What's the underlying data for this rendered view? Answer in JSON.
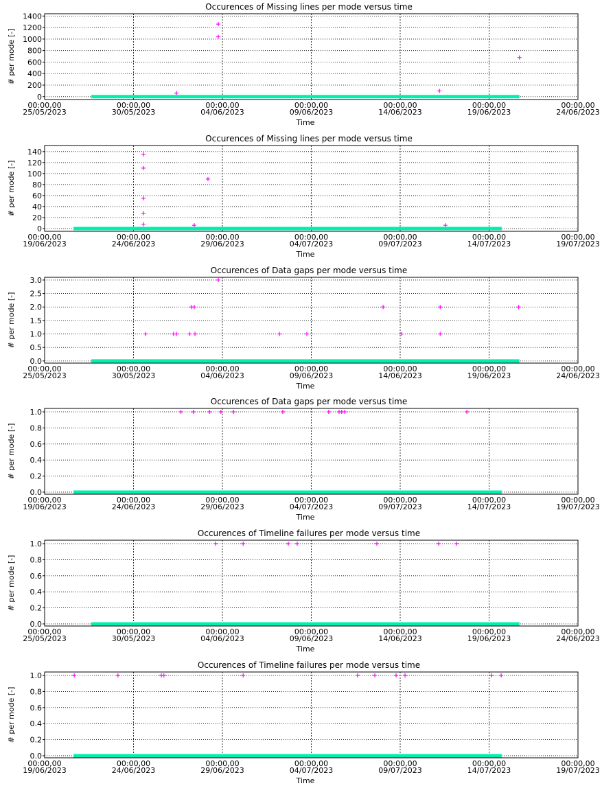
{
  "chart_data": [
    {
      "type": "scatter",
      "title": "Occurences of Missing lines per mode versus time",
      "ylabel": "# per mode [-]",
      "xlabel": "Time",
      "xlim": [
        "2023-05-25T00:00",
        "2023-06-24T00:00"
      ],
      "xticks": [
        {
          "value": "2023-05-25T00:00",
          "label": "00:00,00\n25/05/2023"
        },
        {
          "value": "2023-05-30T00:00",
          "label": "00:00,00\n30/05/2023"
        },
        {
          "value": "2023-06-04T00:00",
          "label": "00:00,00\n04/06/2023"
        },
        {
          "value": "2023-06-09T00:00",
          "label": "00:00,00\n09/06/2023"
        },
        {
          "value": "2023-06-14T00:00",
          "label": "00:00,00\n14/06/2023"
        },
        {
          "value": "2023-06-19T00:00",
          "label": "00:00,00\n19/06/2023"
        },
        {
          "value": "2023-06-24T00:00",
          "label": "00:00,00\n24/06/2023"
        }
      ],
      "ylim": [
        -50,
        1440
      ],
      "yticks": [
        0,
        200,
        400,
        600,
        800,
        1000,
        1200,
        1400
      ],
      "grid": true,
      "series": [
        {
          "marker": "+",
          "color": "#ff00ff",
          "x": [
            "2023-06-03T18:30",
            "2023-06-03T18:30",
            "2023-06-01T10:00",
            "2023-06-16T05:00",
            "2023-06-20T17:00"
          ],
          "values": [
            1260,
            1040,
            60,
            100,
            680
          ]
        },
        {
          "marker": "band",
          "color": "#00f0b0",
          "x": [
            "2023-05-27T15:00",
            "2023-06-20T17:00"
          ],
          "values": [
            0,
            0
          ]
        }
      ]
    },
    {
      "type": "scatter",
      "title": "Occurences of Missing lines per mode versus time",
      "ylabel": "# per mode [-]",
      "xlabel": "Time",
      "xlim": [
        "2023-06-19T00:00",
        "2023-07-19T00:00"
      ],
      "xticks": [
        {
          "value": "2023-06-19T00:00",
          "label": "00:00,00\n19/06/2023"
        },
        {
          "value": "2023-06-24T00:00",
          "label": "00:00,00\n24/06/2023"
        },
        {
          "value": "2023-06-29T00:00",
          "label": "00:00,00\n29/06/2023"
        },
        {
          "value": "2023-07-04T00:00",
          "label": "00:00,00\n04/07/2023"
        },
        {
          "value": "2023-07-09T00:00",
          "label": "00:00,00\n09/07/2023"
        },
        {
          "value": "2023-07-14T00:00",
          "label": "00:00,00\n14/07/2023"
        },
        {
          "value": "2023-07-19T00:00",
          "label": "00:00,00\n19/07/2023"
        }
      ],
      "ylim": [
        -5,
        151
      ],
      "yticks": [
        0,
        20,
        40,
        60,
        80,
        100,
        120,
        140
      ],
      "grid": true,
      "series": [
        {
          "marker": "+",
          "color": "#ff00ff",
          "x": [
            "2023-06-24T13:20",
            "2023-06-24T13:20",
            "2023-06-24T13:20",
            "2023-06-24T13:20",
            "2023-06-24T13:20",
            "2023-06-27T10:00",
            "2023-06-28T04:30",
            "2023-07-11T13:00"
          ],
          "values": [
            135,
            110,
            55,
            28,
            8,
            6,
            90,
            6
          ]
        },
        {
          "marker": "band",
          "color": "#00f0b0",
          "x": [
            "2023-06-20T15:00",
            "2023-07-14T17:00"
          ],
          "values": [
            0,
            0
          ]
        }
      ]
    },
    {
      "type": "scatter",
      "title": "Occurences of Data gaps per mode versus time",
      "ylabel": "# per mode [-]",
      "xlabel": "Time",
      "xlim": [
        "2023-05-25T00:00",
        "2023-06-24T00:00"
      ],
      "xticks": [
        {
          "value": "2023-05-25T00:00",
          "label": "00:00,00\n25/05/2023"
        },
        {
          "value": "2023-05-30T00:00",
          "label": "00:00,00\n30/05/2023"
        },
        {
          "value": "2023-06-04T00:00",
          "label": "00:00,00\n04/06/2023"
        },
        {
          "value": "2023-06-09T00:00",
          "label": "00:00,00\n09/06/2023"
        },
        {
          "value": "2023-06-14T00:00",
          "label": "00:00,00\n14/06/2023"
        },
        {
          "value": "2023-06-19T00:00",
          "label": "00:00,00\n19/06/2023"
        },
        {
          "value": "2023-06-24T00:00",
          "label": "00:00,00\n24/06/2023"
        }
      ],
      "ylim": [
        -0.08,
        3.1
      ],
      "yticks": [
        {
          "value": 0,
          "label": "0.0"
        },
        0.5,
        {
          "value": 1,
          "label": "1.0"
        },
        1.5,
        {
          "value": 2,
          "label": "2.0"
        },
        2.5,
        {
          "value": 3,
          "label": "3.0"
        }
      ],
      "grid": true,
      "series": [
        {
          "marker": "+",
          "color": "#ff00ff",
          "x": [
            "2023-06-03T18:30",
            "2023-05-30T16:00",
            "2023-06-01T06:00",
            "2023-06-01T10:00",
            "2023-06-02T04:00",
            "2023-06-02T11:00",
            "2023-06-02T06:00",
            "2023-06-02T10:00",
            "2023-06-07T05:00",
            "2023-06-08T18:00",
            "2023-06-13T01:00",
            "2023-06-14T02:00",
            "2023-06-16T06:00",
            "2023-06-16T06:00",
            "2023-06-20T16:00"
          ],
          "values": [
            3,
            1,
            1,
            1,
            1,
            1,
            2,
            2,
            1,
            1,
            2,
            1,
            2,
            1,
            2
          ]
        },
        {
          "marker": "band",
          "color": "#00f0b0",
          "x": [
            "2023-05-27T15:00",
            "2023-06-20T17:00"
          ],
          "values": [
            0,
            0
          ]
        }
      ]
    },
    {
      "type": "scatter",
      "title": "Occurences of Data gaps per mode versus time",
      "ylabel": "# per mode [-]",
      "xlabel": "Time",
      "xlim": [
        "2023-06-19T00:00",
        "2023-07-19T00:00"
      ],
      "xticks": [
        {
          "value": "2023-06-19T00:00",
          "label": "00:00,00\n19/06/2023"
        },
        {
          "value": "2023-06-24T00:00",
          "label": "00:00,00\n24/06/2023"
        },
        {
          "value": "2023-06-29T00:00",
          "label": "00:00,00\n29/06/2023"
        },
        {
          "value": "2023-07-04T00:00",
          "label": "00:00,00\n04/07/2023"
        },
        {
          "value": "2023-07-09T00:00",
          "label": "00:00,00\n09/07/2023"
        },
        {
          "value": "2023-07-14T00:00",
          "label": "00:00,00\n14/07/2023"
        },
        {
          "value": "2023-07-19T00:00",
          "label": "00:00,00\n19/07/2023"
        }
      ],
      "ylim": [
        -0.026,
        1.043
      ],
      "yticks": [
        {
          "value": 0,
          "label": "0.0"
        },
        0.2,
        0.4,
        0.6,
        0.8,
        {
          "value": 1,
          "label": "1.0"
        }
      ],
      "grid": true,
      "series": [
        {
          "marker": "+",
          "color": "#ff00ff",
          "x": [
            "2023-06-26T16:00",
            "2023-06-27T09:00",
            "2023-06-28T06:30",
            "2023-06-28T22:00",
            "2023-06-29T15:00",
            "2023-07-02T09:30",
            "2023-07-04T23:30",
            "2023-07-05T13:30",
            "2023-07-05T17:00",
            "2023-07-05T21:00",
            "2023-07-12T18:00"
          ],
          "values": [
            1,
            1,
            1,
            1,
            1,
            1,
            1,
            1,
            1,
            1,
            1
          ]
        },
        {
          "marker": "band",
          "color": "#00f0b0",
          "x": [
            "2023-06-20T15:00",
            "2023-07-14T17:00"
          ],
          "values": [
            0,
            0
          ]
        }
      ]
    },
    {
      "type": "scatter",
      "title": "Occurences of Timeline failures per mode versus time",
      "ylabel": "# per mode [-]",
      "xlabel": "Time",
      "xlim": [
        "2023-05-25T00:00",
        "2023-06-24T00:00"
      ],
      "xticks": [
        {
          "value": "2023-05-25T00:00",
          "label": "00:00,00\n25/05/2023"
        },
        {
          "value": "2023-05-30T00:00",
          "label": "00:00,00\n30/05/2023"
        },
        {
          "value": "2023-06-04T00:00",
          "label": "00:00,00\n04/06/2023"
        },
        {
          "value": "2023-06-09T00:00",
          "label": "00:00,00\n09/06/2023"
        },
        {
          "value": "2023-06-14T00:00",
          "label": "00:00,00\n14/06/2023"
        },
        {
          "value": "2023-06-19T00:00",
          "label": "00:00,00\n19/06/2023"
        },
        {
          "value": "2023-06-24T00:00",
          "label": "00:00,00\n24/06/2023"
        }
      ],
      "ylim": [
        -0.026,
        1.043
      ],
      "yticks": [
        {
          "value": 0,
          "label": "0.0"
        },
        0.2,
        0.4,
        0.6,
        0.8,
        {
          "value": 1,
          "label": "1.0"
        }
      ],
      "grid": true,
      "series": [
        {
          "marker": "+",
          "color": "#ff00ff",
          "x": [
            "2023-06-03T14:45",
            "2023-06-05T04:00",
            "2023-06-07T17:00",
            "2023-06-08T05:00",
            "2023-06-12T16:30",
            "2023-06-16T04:00",
            "2023-06-17T04:00"
          ],
          "values": [
            1,
            1,
            1,
            1,
            1,
            1,
            1
          ]
        },
        {
          "marker": "band",
          "color": "#00f0b0",
          "x": [
            "2023-05-27T15:00",
            "2023-06-20T17:00"
          ],
          "values": [
            0,
            0
          ]
        }
      ]
    },
    {
      "type": "scatter",
      "title": "Occurences of Timeline failures per mode versus time",
      "ylabel": "# per mode [-]",
      "xlabel": "Time",
      "xlim": [
        "2023-06-19T00:00",
        "2023-07-19T00:00"
      ],
      "xticks": [
        {
          "value": "2023-06-19T00:00",
          "label": "00:00,00\n19/06/2023"
        },
        {
          "value": "2023-06-24T00:00",
          "label": "00:00,00\n24/06/2023"
        },
        {
          "value": "2023-06-29T00:00",
          "label": "00:00,00\n29/06/2023"
        },
        {
          "value": "2023-07-04T00:00",
          "label": "00:00,00\n04/07/2023"
        },
        {
          "value": "2023-07-09T00:00",
          "label": "00:00,00\n09/07/2023"
        },
        {
          "value": "2023-07-14T00:00",
          "label": "00:00,00\n14/07/2023"
        },
        {
          "value": "2023-07-19T00:00",
          "label": "00:00,00\n19/07/2023"
        }
      ],
      "ylim": [
        -0.026,
        1.043
      ],
      "yticks": [
        {
          "value": 0,
          "label": "0.0"
        },
        0.2,
        0.4,
        0.6,
        0.8,
        {
          "value": 1,
          "label": "1.0"
        }
      ],
      "grid": true,
      "series": [
        {
          "marker": "+",
          "color": "#ff00ff",
          "x": [
            "2023-06-20T16:00",
            "2023-06-23T03:00",
            "2023-06-25T13:30",
            "2023-06-25T17:00",
            "2023-06-30T04:00",
            "2023-07-06T14:30",
            "2023-07-07T13:45",
            "2023-07-08T18:30",
            "2023-07-09T06:30",
            "2023-07-14T03:20",
            "2023-07-14T16:20"
          ],
          "values": [
            1,
            1,
            1,
            1,
            1,
            1,
            1,
            1,
            1,
            1,
            1
          ]
        },
        {
          "marker": "band",
          "color": "#00f0b0",
          "x": [
            "2023-06-20T15:00",
            "2023-07-14T17:00"
          ],
          "values": [
            0,
            0
          ]
        }
      ]
    }
  ]
}
